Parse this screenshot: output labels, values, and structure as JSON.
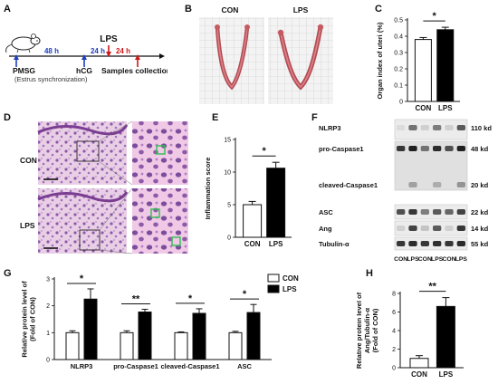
{
  "panels": {
    "A": {
      "letter": "A",
      "lps": "LPS",
      "pmsg": "PMSG",
      "estrus": "(Estrus synchronization)",
      "hcg": "hCG",
      "t48": "48 h",
      "t24a": "24 h",
      "t24b": "24 h",
      "samples": "Samples collection"
    },
    "B": {
      "letter": "B",
      "con": "CON",
      "lps": "LPS"
    },
    "C": {
      "letter": "C"
    },
    "D": {
      "letter": "D",
      "con": "CON",
      "lps": "LPS"
    },
    "E": {
      "letter": "E"
    },
    "F": {
      "letter": "F",
      "bands": [
        {
          "name": "NLRP3",
          "kd": "110 kd"
        },
        {
          "name": "pro-Caspase1",
          "kd": "48 kd"
        },
        {
          "name": "cleaved-Caspase1",
          "kd": "20 kd"
        },
        {
          "name": "ASC",
          "kd": "22 kd"
        },
        {
          "name": "Ang",
          "kd": "14 kd"
        },
        {
          "name": "Tubulin-α",
          "kd": "55 kd"
        }
      ],
      "lanes": [
        "CON",
        "LPS",
        "CON",
        "LPS",
        "CON",
        "LPS"
      ]
    },
    "G": {
      "letter": "G"
    },
    "H": {
      "letter": "H"
    }
  },
  "colors": {
    "con_fill": "#ffffff",
    "lps_fill": "#000000",
    "sig_star": "#000000"
  },
  "chart_data": [
    {
      "id": "C",
      "type": "bar",
      "categories": [
        "CON",
        "LPS"
      ],
      "values": [
        0.38,
        0.44
      ],
      "errors": [
        0.012,
        0.015
      ],
      "ylabel": "Organ index of uteri (%)",
      "ylim": [
        0,
        0.5
      ],
      "yticks": [
        0.0,
        0.1,
        0.2,
        0.3,
        0.4,
        0.5
      ],
      "significance": [
        {
          "between": [
            0,
            1
          ],
          "label": "*"
        }
      ]
    },
    {
      "id": "E",
      "type": "bar",
      "categories": [
        "CON",
        "LPS"
      ],
      "values": [
        5.0,
        10.6
      ],
      "errors": [
        0.5,
        0.9
      ],
      "ylabel": "Inflammation score",
      "ylim": [
        0,
        15
      ],
      "yticks": [
        0,
        5,
        10,
        15
      ],
      "significance": [
        {
          "between": [
            0,
            1
          ],
          "label": "*"
        }
      ]
    },
    {
      "id": "G",
      "type": "bar",
      "categories": [
        "NLRP3",
        "pro-Caspase1",
        "cleaved-Caspase1",
        "ASC"
      ],
      "series": [
        {
          "name": "CON",
          "values": [
            1.0,
            1.0,
            1.0,
            1.0
          ],
          "errors": [
            0.07,
            0.07,
            0.03,
            0.05
          ]
        },
        {
          "name": "LPS",
          "values": [
            2.25,
            1.77,
            1.72,
            1.75
          ],
          "errors": [
            0.38,
            0.1,
            0.17,
            0.3
          ]
        }
      ],
      "ylabel": "Relative protein level of\n(Fold of CON)",
      "ylim": [
        0,
        3
      ],
      "yticks": [
        0,
        1,
        2,
        3
      ],
      "significance": [
        {
          "category": 0,
          "label": "*"
        },
        {
          "category": 1,
          "label": "**"
        },
        {
          "category": 2,
          "label": "*"
        },
        {
          "category": 3,
          "label": "*"
        }
      ],
      "legend": "top-right"
    },
    {
      "id": "H",
      "type": "bar",
      "categories": [
        "CON",
        "LPS"
      ],
      "values": [
        1.0,
        6.6
      ],
      "errors": [
        0.3,
        0.95
      ],
      "ylabel": "Relative protein level of\nAng/Tubulin-α\n(Fold of CON)",
      "ylim": [
        0,
        8
      ],
      "yticks": [
        0,
        2,
        4,
        6,
        8
      ],
      "significance": [
        {
          "between": [
            0,
            1
          ],
          "label": "**"
        }
      ]
    }
  ]
}
